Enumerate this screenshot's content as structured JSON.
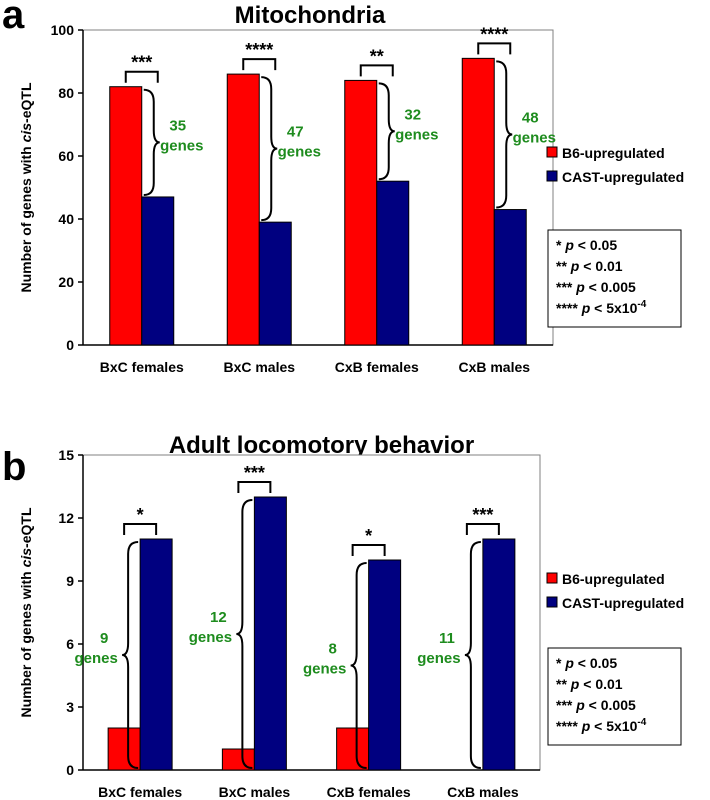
{
  "panels": [
    {
      "letter": "a",
      "title": "Mitochondria",
      "ylabel": "Number of genes with cis-eQTL",
      "ylabel_plain": "Number of genes with ",
      "ylabel_italic": "cis",
      "ylabel_suffix": "-eQTL",
      "ylim": [
        0,
        100
      ],
      "yticks": [
        "0",
        "20",
        "40",
        "60",
        "80",
        "100"
      ],
      "legend": [
        "B6-upregulated",
        "CAST-upregulated"
      ],
      "pvalue_box": [
        {
          "stars": "*",
          "label": "p",
          "rest": " < 0.05"
        },
        {
          "stars": "**",
          "label": "p",
          "rest": " < 0.01"
        },
        {
          "stars": "***",
          "label": "p",
          "rest": " < 0.005"
        },
        {
          "stars": "****",
          "label": "p",
          "rest": " < 5x10",
          "sup": "-4"
        }
      ],
      "significance": [
        "***",
        "****",
        "**",
        "****"
      ],
      "gene_diff_numbers": [
        "35",
        "47",
        "32",
        "48"
      ],
      "gene_word": "genes"
    },
    {
      "letter": "b",
      "title": "Adult locomotory behavior",
      "ylabel": "Number of genes with cis-eQTL",
      "ylabel_plain": "Number of genes with ",
      "ylabel_italic": "cis",
      "ylabel_suffix": "-eQTL",
      "ylim": [
        0,
        15
      ],
      "yticks": [
        "0",
        "3",
        "6",
        "9",
        "12",
        "15"
      ],
      "legend": [
        "B6-upregulated",
        "CAST-upregulated"
      ],
      "pvalue_box": [
        {
          "stars": "*",
          "label": "p",
          "rest": " < 0.05"
        },
        {
          "stars": "**",
          "label": "p",
          "rest": " < 0.01"
        },
        {
          "stars": "***",
          "label": "p",
          "rest": " < 0.005"
        },
        {
          "stars": "****",
          "label": "p",
          "rest": " < 5x10",
          "sup": "-4"
        }
      ],
      "significance": [
        "*",
        "***",
        "*",
        "***"
      ],
      "gene_diff_numbers": [
        "9",
        "12",
        "8",
        "11"
      ],
      "gene_word": "genes"
    }
  ],
  "colors": {
    "b6": "#ff0000",
    "cast": "#000080",
    "genes_text": "#1e8c1e"
  },
  "chart_data": [
    {
      "type": "bar",
      "title": "Mitochondria",
      "ylabel": "Number of genes with cis-eQTL",
      "ylim": [
        0,
        100
      ],
      "categories": [
        "BxC females",
        "BxC males",
        "CxB females",
        "CxB males"
      ],
      "series": [
        {
          "name": "B6-upregulated",
          "values": [
            82,
            86,
            84,
            91
          ]
        },
        {
          "name": "CAST-upregulated",
          "values": [
            47,
            39,
            52,
            43
          ]
        }
      ],
      "legend": "right"
    },
    {
      "type": "bar",
      "title": "Adult locomotory behavior",
      "ylabel": "Number of genes with cis-eQTL",
      "ylim": [
        0,
        15
      ],
      "categories": [
        "BxC females",
        "BxC males",
        "CxB females",
        "CxB males"
      ],
      "series": [
        {
          "name": "B6-upregulated",
          "values": [
            2,
            1,
            2,
            0
          ]
        },
        {
          "name": "CAST-upregulated",
          "values": [
            11,
            13,
            10,
            11
          ]
        }
      ],
      "legend": "right"
    }
  ]
}
